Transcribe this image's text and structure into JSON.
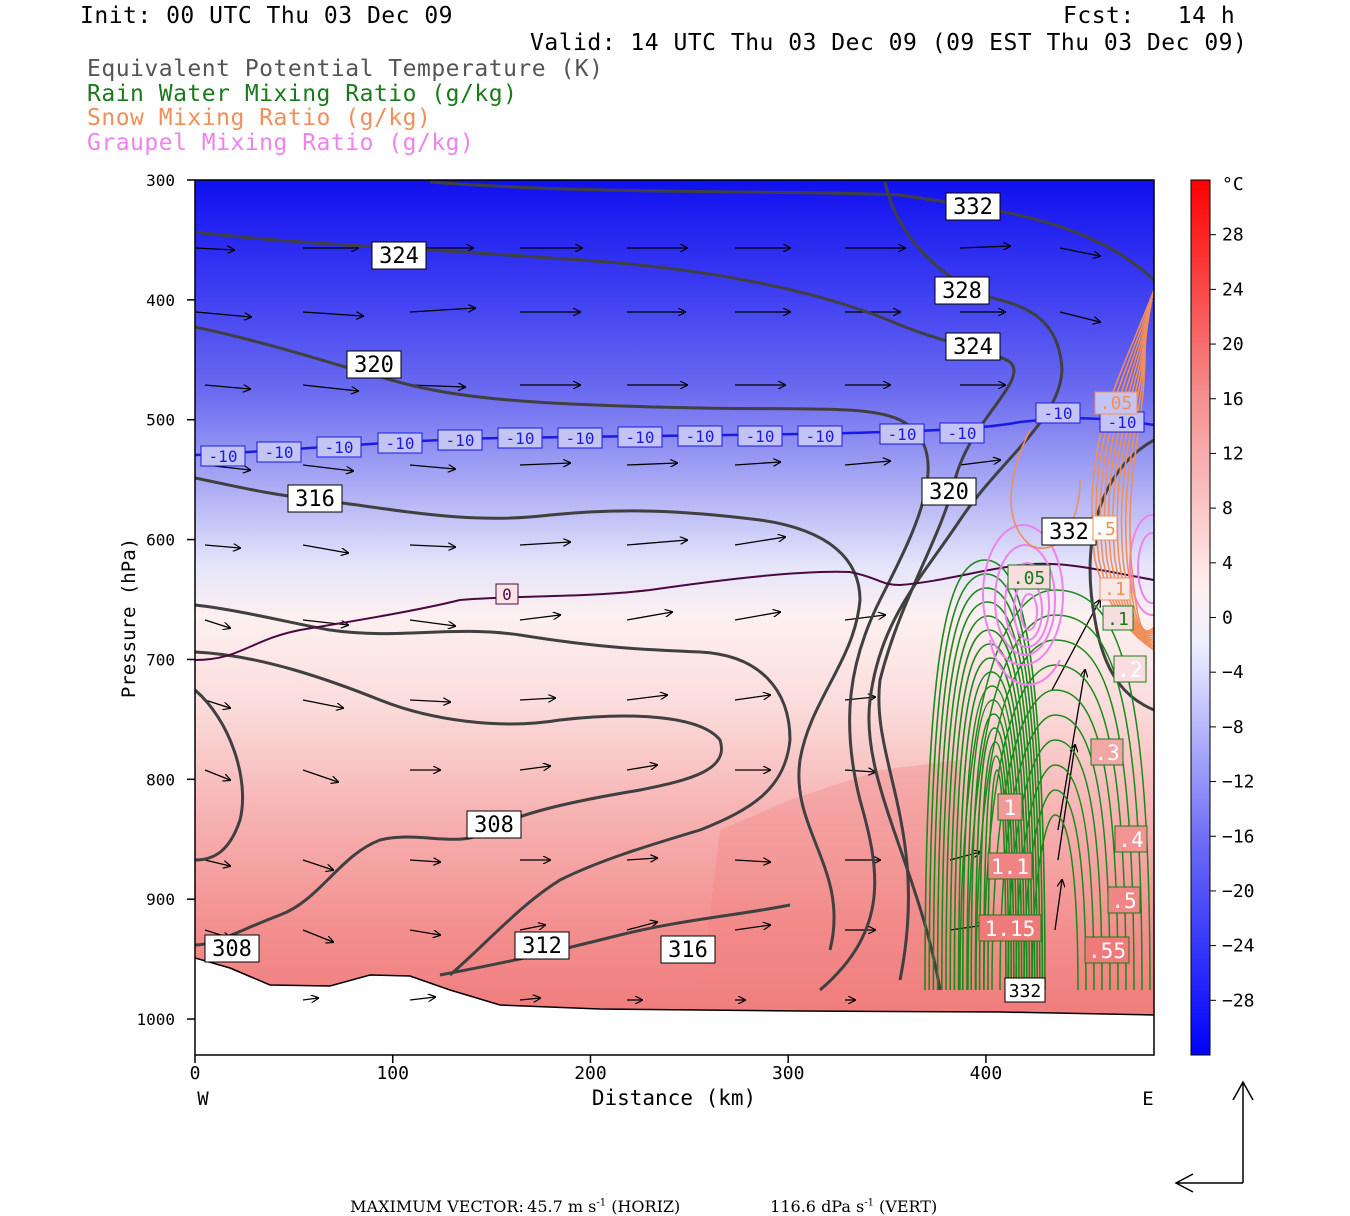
{
  "header": {
    "init": "Init: 00 UTC Thu 03 Dec 09",
    "fcst": "Fcst:   14 h",
    "valid": "Valid: 14 UTC Thu 03 Dec 09 (09 EST Thu 03 Dec 09)",
    "fields": [
      {
        "label": "Equivalent Potential Temperature (K)",
        "color": "#555555"
      },
      {
        "label": "Rain Water Mixing Ratio (g/kg)",
        "color": "#1a7a1a"
      },
      {
        "label": "Snow Mixing Ratio (g/kg)",
        "color": "#ef8f5a"
      },
      {
        "label": "Graupel Mixing Ratio (g/kg)",
        "color": "#ee82ee"
      }
    ]
  },
  "chart_data": {
    "type": "cross-section",
    "xlabel": "Distance (km)",
    "ylabel": "Pressure (hPa)",
    "xlim": [
      0,
      485
    ],
    "ylim": [
      1030,
      300
    ],
    "x_ticks": [
      0,
      100,
      200,
      300,
      400
    ],
    "x_tick_labels": [
      "0",
      "100",
      "200",
      "300",
      "400"
    ],
    "y_ticks": [
      300,
      400,
      500,
      600,
      700,
      800,
      900,
      1000
    ],
    "y_tick_labels": [
      "300",
      "400",
      "500",
      "600",
      "700",
      "800",
      "900",
      "1000"
    ],
    "left_end": "W",
    "right_end": "E",
    "colorbar": {
      "unit": "°C",
      "tick_labels": [
        "28",
        "24",
        "20",
        "16",
        "12",
        "8",
        "4",
        "0",
        "−4",
        "−8",
        "−12",
        "−16",
        "−20",
        "−24",
        "−28"
      ],
      "tick_values": [
        28,
        24,
        20,
        16,
        12,
        8,
        4,
        0,
        -4,
        -8,
        -12,
        -16,
        -20,
        -24,
        -28
      ],
      "range": [
        -32,
        32
      ],
      "cold_color": "#0000ff",
      "warm_color": "#ff0000"
    },
    "theta_e_contours": [
      {
        "level": "332",
        "color": "#444444"
      },
      {
        "level": "328",
        "color": "#444444"
      },
      {
        "level": "324",
        "color": "#444444"
      },
      {
        "level": "320",
        "color": "#444444"
      },
      {
        "level": "316",
        "color": "#444444"
      },
      {
        "level": "312",
        "color": "#444444"
      },
      {
        "level": "308",
        "color": "#444444"
      }
    ],
    "isotherm_labels": [
      "-10",
      "0"
    ],
    "rain_labels": [
      "1",
      "1.1",
      "1.15",
      ".05",
      ".1",
      ".2",
      ".3",
      ".4",
      ".5",
      ".55"
    ],
    "snow_labels": [
      ".5",
      ".05",
      ".1"
    ],
    "max_vector": {
      "label": "MAXIMUM VECTOR:",
      "horiz": "45.7 m s",
      "horiz_exp": "-1",
      "horiz_tag": "(HORIZ)",
      "vert": "116.6 dPa s",
      "vert_exp": "-1",
      "vert_tag": "(VERT)"
    }
  }
}
